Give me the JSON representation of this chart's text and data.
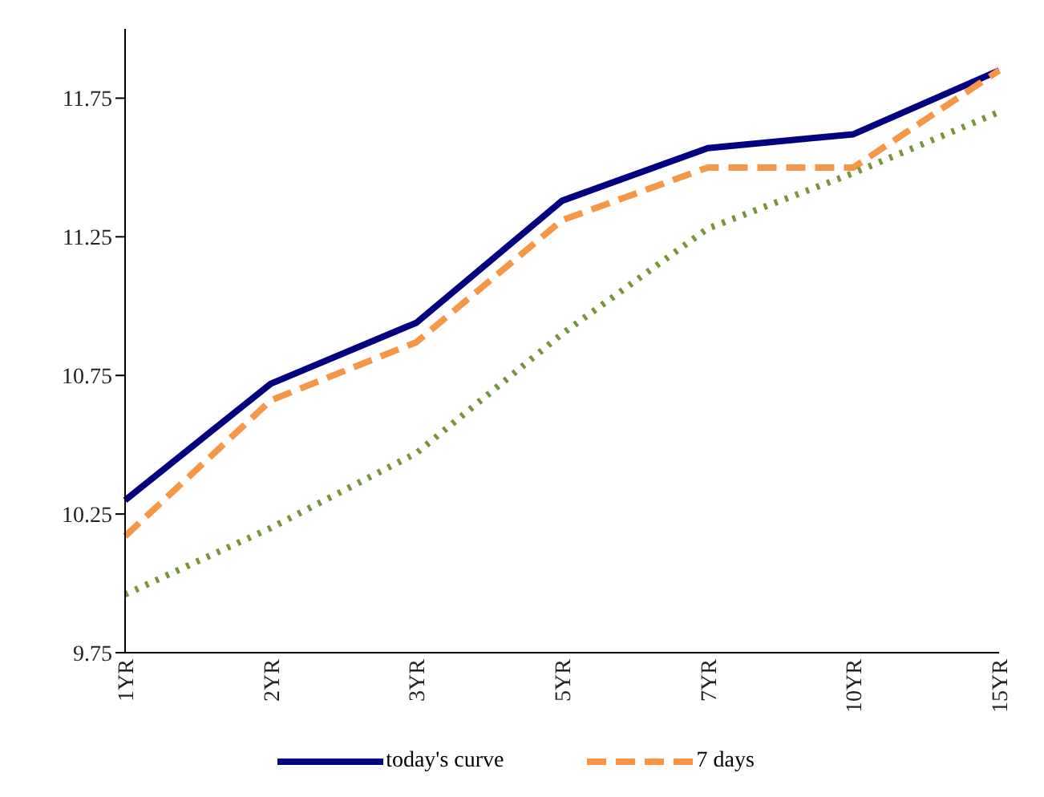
{
  "chart_data": {
    "type": "line",
    "categories": [
      "1YR",
      "2YR",
      "3YR",
      "5YR",
      "7YR",
      "10YR",
      "15YR"
    ],
    "series": [
      {
        "name": "today's curve",
        "color": "#000080",
        "line_style": "solid",
        "values": [
          10.3,
          10.72,
          10.94,
          11.38,
          11.57,
          11.62,
          11.85
        ]
      },
      {
        "name": "7 days",
        "color": "#f79646",
        "line_style": "dashed",
        "values": [
          10.17,
          10.66,
          10.87,
          11.31,
          11.5,
          11.5,
          11.85
        ]
      },
      {
        "color": "#77933c",
        "line_style": "dotted",
        "values": [
          9.96,
          10.2,
          10.47,
          10.9,
          11.28,
          11.48,
          11.7
        ]
      }
    ],
    "ylim": [
      9.75,
      12.0
    ],
    "yticks": [
      9.75,
      10.25,
      10.75,
      11.25,
      11.75
    ],
    "grid": false,
    "legend": "bottom",
    "marker": "none"
  }
}
